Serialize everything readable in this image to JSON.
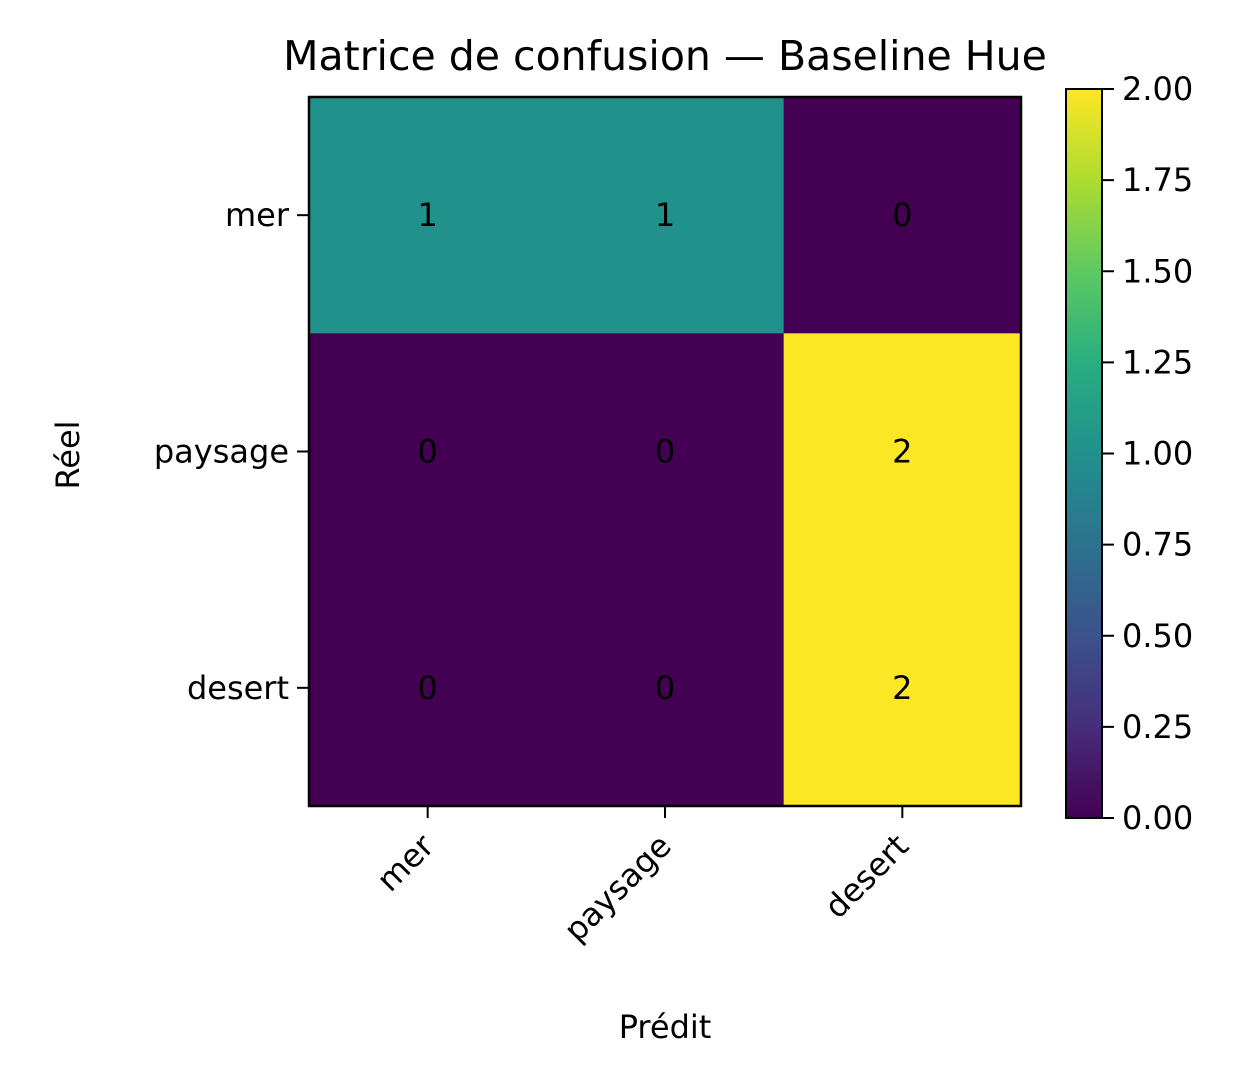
{
  "chart_data": {
    "type": "heatmap",
    "title": "Matrice de confusion — Baseline Hue",
    "xlabel": "Prédit",
    "ylabel": "Réel",
    "x_categories": [
      "mer",
      "paysage",
      "desert"
    ],
    "y_categories": [
      "mer",
      "paysage",
      "desert"
    ],
    "matrix": [
      [
        1,
        1,
        0
      ],
      [
        0,
        0,
        2
      ],
      [
        0,
        0,
        2
      ]
    ],
    "colormap": "viridis",
    "value_range": [
      0,
      2
    ],
    "colorbar_ticks": [
      "0.00",
      "0.25",
      "0.50",
      "0.75",
      "1.00",
      "1.25",
      "1.50",
      "1.75",
      "2.00"
    ],
    "colorbar_tick_values": [
      0,
      0.25,
      0.5,
      0.75,
      1.0,
      1.25,
      1.5,
      1.75,
      2.0
    ],
    "grid": false
  }
}
